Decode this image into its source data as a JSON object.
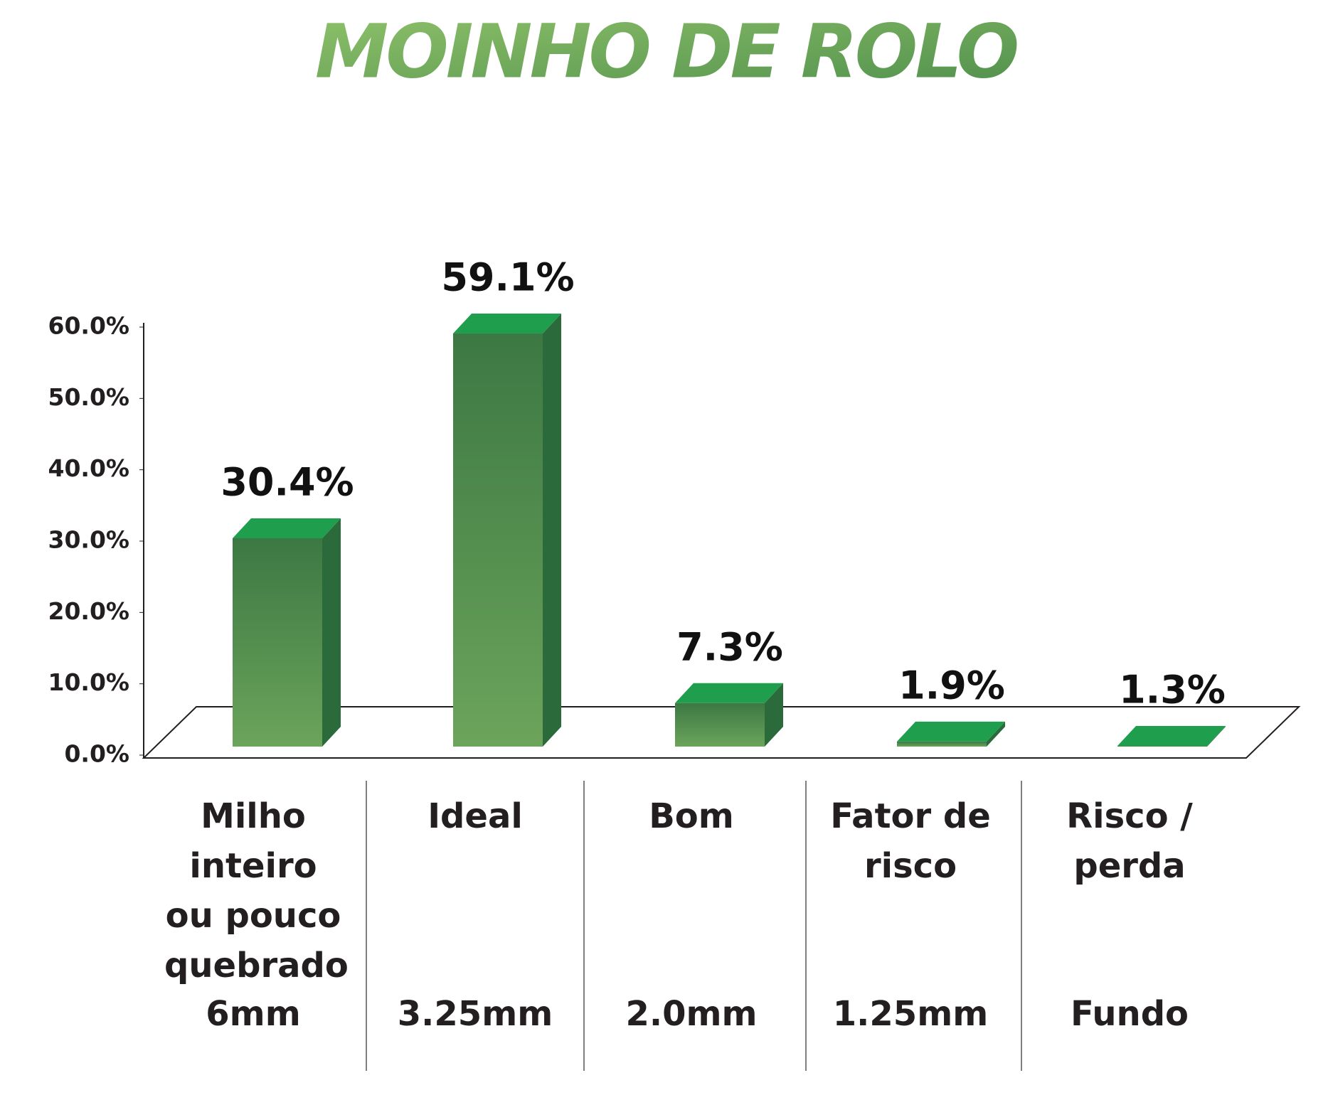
{
  "chart_data": {
    "type": "bar3d",
    "title": "MOINHO DE ROLO",
    "categories": [
      "Milho inteiro ou pouco quebrado",
      "Ideal",
      "Bom",
      "Fator de risco",
      "Risco / perda"
    ],
    "sizes": [
      "6mm",
      "3.25mm",
      "2.0mm",
      "1.25mm",
      "Fundo"
    ],
    "values": [
      30.4,
      59.1,
      7.3,
      1.9,
      1.3
    ],
    "value_labels": [
      "30.4%",
      "59.1%",
      "7.3%",
      "1.9%",
      "1.3%"
    ],
    "color": "#4e8a4c",
    "ylim": [
      0,
      60
    ],
    "yticks": [
      {
        "value": 0,
        "label": "0.0%"
      },
      {
        "value": 10,
        "label": "10.0%"
      },
      {
        "value": 20,
        "label": "20.0%"
      },
      {
        "value": 30,
        "label": "30.0%"
      },
      {
        "value": 40,
        "label": "40.0%"
      },
      {
        "value": 50,
        "label": "50.0%"
      },
      {
        "value": 60,
        "label": "60.0%"
      }
    ]
  }
}
